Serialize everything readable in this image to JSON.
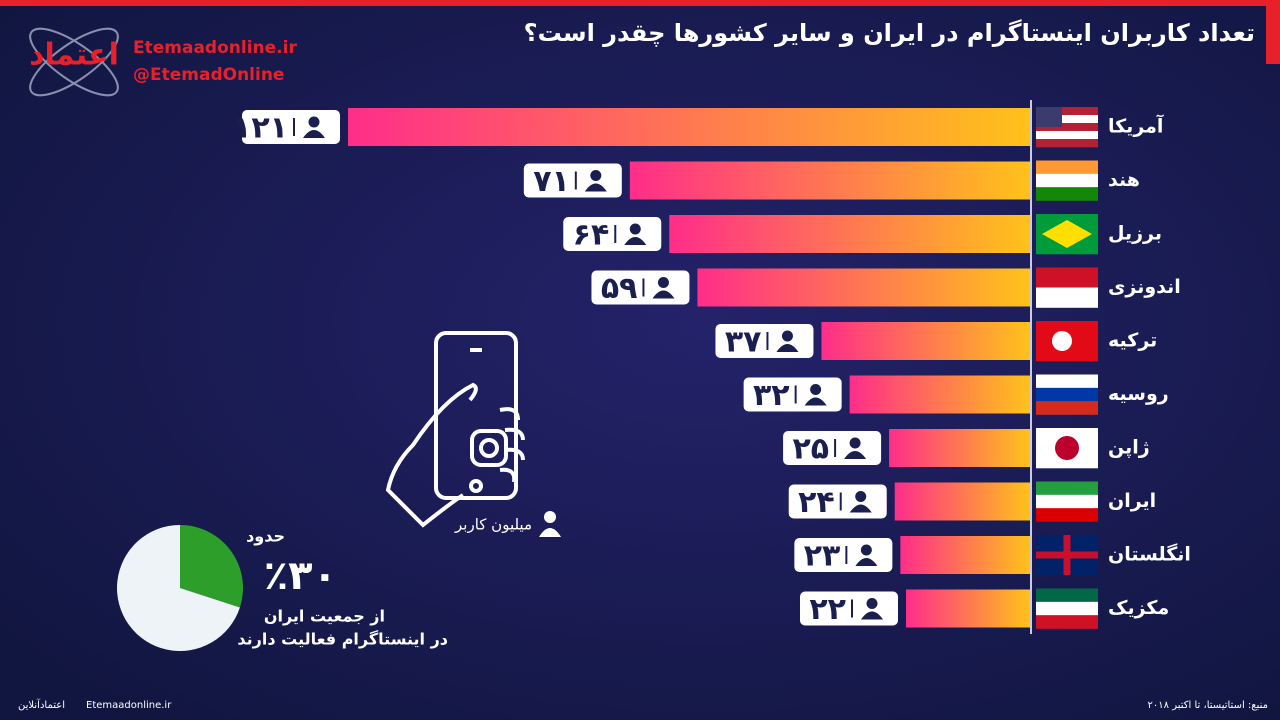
{
  "header": {
    "title": "تعداد کاربران اینستاگرام در ایران و سایر کشورها چقدر است؟",
    "site": "Etemaadonline.ir",
    "handle": "@EtemadOnline"
  },
  "chart_data": [
    {
      "type": "hbar",
      "categories": [
        "آمریکا",
        "هند",
        "برزیل",
        "اندونزی",
        "ترکیه",
        "روسیه",
        "ژاپن",
        "ایران",
        "انگلستان",
        "مکزیک"
      ],
      "values": [
        121,
        71,
        64,
        59,
        37,
        32,
        25,
        24,
        23,
        22
      ],
      "value_labels": [
        "۱۲۱",
        "۷۱",
        "۶۴",
        "۵۹",
        "۳۷",
        "۳۲",
        "۲۵",
        "۲۴",
        "۲۳",
        "۲۲"
      ],
      "xlim": [
        0,
        121
      ],
      "colors": [
        "#ff2d8a",
        "#ffc21a"
      ],
      "legend": "میلیون کاربر"
    },
    {
      "type": "pie",
      "values": [
        30,
        70
      ],
      "value_labels": [
        "٪۳۰",
        null
      ],
      "colors": [
        "#2e9e2a",
        "#eef3f8"
      ],
      "text_above": "حدود",
      "text_below": [
        "از جمعیت ایران",
        "در اینستاگرام فعالیت دارند"
      ]
    }
  ],
  "footer": {
    "source": "منبع: استاتیستا، تا اکتبر ۲۰۱۸",
    "site": "Etemaadonline.ir",
    "brand": "اعتمادآنلاین"
  }
}
